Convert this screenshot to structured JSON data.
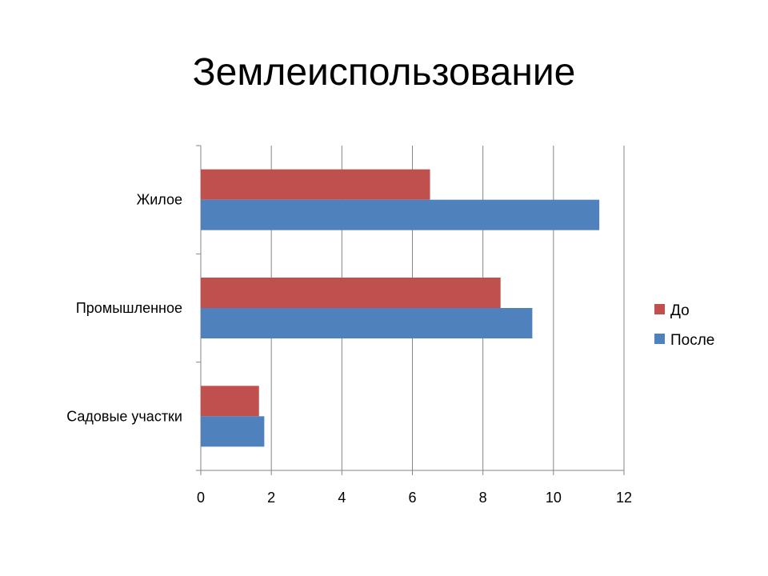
{
  "chart_data": {
    "type": "bar",
    "orientation": "horizontal",
    "title": "Землеиспользование",
    "categories": [
      "Жилое",
      "Промышленное",
      "Садовые участки"
    ],
    "series": [
      {
        "name": "До",
        "values": [
          6.5,
          8.5,
          1.65
        ],
        "color": "#c0504d"
      },
      {
        "name": "После",
        "values": [
          11.3,
          9.4,
          1.8
        ],
        "color": "#4f81bd"
      }
    ],
    "xlim": [
      0,
      12
    ],
    "xticks": [
      "0",
      "2",
      "4",
      "6",
      "8",
      "10",
      "12"
    ],
    "grid": true,
    "legend_position": "right",
    "axis_color": "#868686"
  }
}
